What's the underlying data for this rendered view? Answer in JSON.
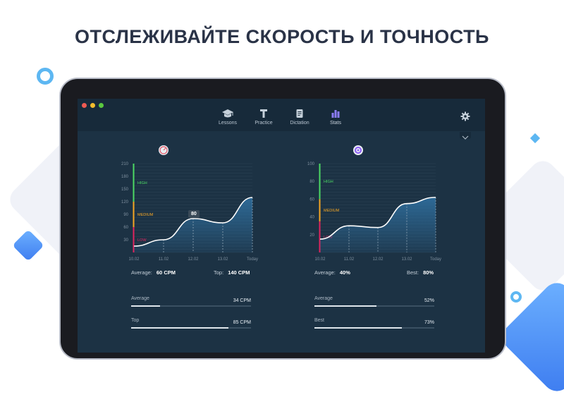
{
  "headline": "ОТСЛЕЖИВАЙТЕ СКОРОСТЬ И ТОЧНОСТЬ",
  "toolbar": {
    "tabs": [
      {
        "label": "Lessons",
        "icon": "graduation-cap-icon"
      },
      {
        "label": "Practice",
        "icon": "text-t-icon"
      },
      {
        "label": "Dictation",
        "icon": "document-icon"
      },
      {
        "label": "Stats",
        "icon": "bar-chart-icon",
        "active": true
      }
    ],
    "settings_icon": "gear-icon"
  },
  "colors": {
    "high": "#4cd964",
    "medium": "#f5a623",
    "low": "#e0245e",
    "curve": "#ffffff",
    "area": "#2f6f9f"
  },
  "speed": {
    "icon": "speedometer-icon",
    "stats": {
      "average_label": "Average:",
      "average_value": "60 CPM",
      "top_label": "Top:",
      "top_value": "140 CPM"
    },
    "highlight": "80",
    "bars": [
      {
        "label": "Average",
        "value": "34 CPM",
        "fraction": 0.24
      },
      {
        "label": "Top",
        "value": "85 CPM",
        "fraction": 0.81
      }
    ]
  },
  "accuracy": {
    "icon": "target-icon",
    "stats": {
      "average_label": "Average:",
      "average_value": "40%",
      "best_label": "Best:",
      "best_value": "80%"
    },
    "bars": [
      {
        "label": "Average",
        "value": "52%",
        "fraction": 0.52
      },
      {
        "label": "Best",
        "value": "73%",
        "fraction": 0.73
      }
    ]
  },
  "chart_data": [
    {
      "type": "area",
      "title": "",
      "categories": [
        "10.02",
        "11.02",
        "12.02",
        "13.02",
        "Today"
      ],
      "y_ticks": [
        "210",
        "180",
        "150",
        "120",
        "90",
        "60",
        "30"
      ],
      "ylim": [
        0,
        210
      ],
      "zones": [
        {
          "label": "HIGH",
          "from": 120,
          "to": 210
        },
        {
          "label": "MEDIUM",
          "from": 60,
          "to": 120
        },
        {
          "label": "LOW",
          "from": 0,
          "to": 60
        }
      ],
      "series": [
        {
          "values": [
            15,
            30,
            80,
            70,
            130
          ]
        }
      ],
      "grid": true
    },
    {
      "type": "area",
      "title": "",
      "categories": [
        "10.02",
        "11.02",
        "12.02",
        "13.02",
        "Today"
      ],
      "y_ticks": [
        "100",
        "80",
        "60",
        "40",
        "20"
      ],
      "ylim": [
        0,
        100
      ],
      "zones": [
        {
          "label": "HIGH",
          "from": 60,
          "to": 100
        },
        {
          "label": "MEDIUM",
          "from": 35,
          "to": 60
        },
        {
          "label": "LOW",
          "from": 0,
          "to": 35
        }
      ],
      "series": [
        {
          "values": [
            15,
            30,
            28,
            55,
            62
          ]
        }
      ],
      "grid": true
    }
  ]
}
